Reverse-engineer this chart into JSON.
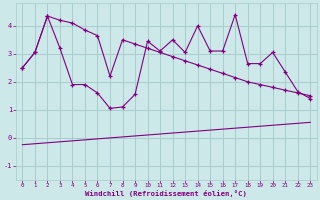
{
  "background_color": "#cde8e8",
  "plot_bg_color": "#cde8e8",
  "line_color": "#800080",
  "grid_color": "#a8cccc",
  "xlabel": "Windchill (Refroidissement éolien,°C)",
  "xlim": [
    -0.5,
    23.5
  ],
  "ylim": [
    -1.5,
    4.8
  ],
  "yticks": [
    -1,
    0,
    1,
    2,
    3,
    4
  ],
  "xticks": [
    0,
    1,
    2,
    3,
    4,
    5,
    6,
    7,
    8,
    9,
    10,
    11,
    12,
    13,
    14,
    15,
    16,
    17,
    18,
    19,
    20,
    21,
    22,
    23
  ],
  "series1_x": [
    0,
    1,
    2,
    3,
    4,
    5,
    6,
    7,
    8,
    9,
    10,
    11,
    12,
    13,
    14,
    15,
    16,
    17,
    18,
    19,
    20,
    21,
    22,
    23
  ],
  "series1_y": [
    2.5,
    3.05,
    4.35,
    4.2,
    4.1,
    3.85,
    3.65,
    2.2,
    3.5,
    3.35,
    3.2,
    3.05,
    2.9,
    2.75,
    2.6,
    2.45,
    2.3,
    2.15,
    2.0,
    1.9,
    1.8,
    1.7,
    1.6,
    1.5
  ],
  "series2_x": [
    0,
    1,
    2,
    3,
    4,
    5,
    6,
    7,
    8,
    9,
    10,
    11,
    12,
    13,
    14,
    15,
    16,
    17,
    18,
    19,
    20,
    21,
    22,
    23
  ],
  "series2_y": [
    2.5,
    3.05,
    4.35,
    3.2,
    1.9,
    1.9,
    1.6,
    1.05,
    1.1,
    1.55,
    3.45,
    3.1,
    3.5,
    3.05,
    4.0,
    3.1,
    3.1,
    4.4,
    2.65,
    2.65,
    3.05,
    2.35,
    1.65,
    1.4
  ],
  "series3_x": [
    0,
    23
  ],
  "series3_y": [
    -0.25,
    0.55
  ]
}
